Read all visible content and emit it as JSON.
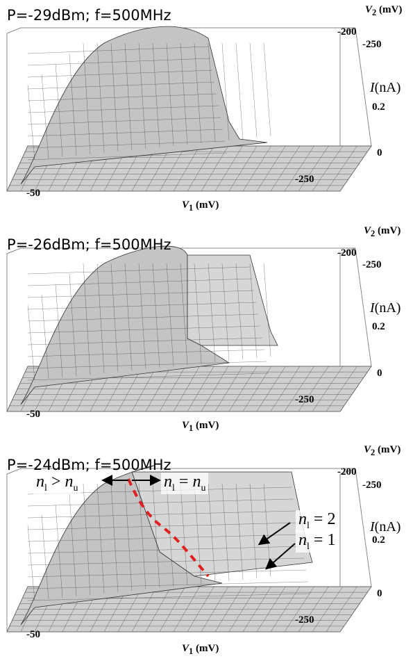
{
  "chart_data": [
    {
      "type": "surface",
      "title": "P=-29dBm; f=500MHz",
      "xlabel": "V1 (mV)",
      "ylabel": "V2 (mV)",
      "zlabel": "I(nA)",
      "x_ticks": [
        "-50",
        "-250"
      ],
      "y_ticks": [
        "-200",
        "-250"
      ],
      "z_ticks": [
        "0.2",
        "0"
      ],
      "plateau_current_nA": 0.3
    },
    {
      "type": "surface",
      "title": "P=-26dBm; f=500MHz",
      "xlabel": "V1 (mV)",
      "ylabel": "V2 (mV)",
      "zlabel": "I(nA)",
      "x_ticks": [
        "-50",
        "-250"
      ],
      "y_ticks": [
        "-200",
        "-250"
      ],
      "z_ticks": [
        "0.2",
        "0"
      ],
      "plateau_current_nA": 0.3
    },
    {
      "type": "surface",
      "title": "P=-24dBm; f=500MHz",
      "xlabel": "V1 (mV)",
      "ylabel": "V2 (mV)",
      "zlabel": "I(nA)",
      "x_ticks": [
        "-50",
        "-250"
      ],
      "y_ticks": [
        "-200",
        "-250"
      ],
      "z_ticks": [
        "0.2",
        "0"
      ],
      "plateau_current_nA": 0.3,
      "annotations": [
        {
          "sym": "n",
          "sub1": "l",
          "op": " > ",
          "rhs": "n",
          "sub2": "u"
        },
        {
          "sym": "n",
          "sub1": "l",
          "op": " = ",
          "rhs": "n",
          "sub2": "u"
        },
        {
          "sym": "n",
          "sub1": "l",
          "op": " = ",
          "rhs": "2",
          "sub2": ""
        },
        {
          "sym": "n",
          "sub1": "l",
          "op": " = ",
          "rhs": "1",
          "sub2": ""
        }
      ]
    }
  ],
  "colors": {
    "surface_fill": "#c4c4c4",
    "mesh_line": "#333333",
    "box_line": "#888888",
    "boundary_dashed": "#e02020"
  }
}
